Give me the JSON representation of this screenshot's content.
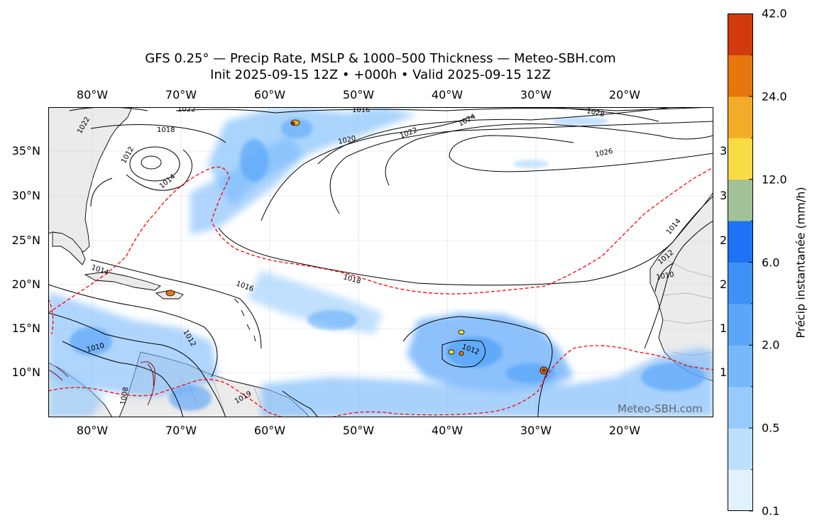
{
  "title_line1": "GFS 0.25° — Precip Rate, MSLP & 1000–500 Thickness — Meteo-SBH.com",
  "title_line2": "Init 2025-09-15 12Z • +000h • Valid 2025-09-15 12Z",
  "lon_ticks": [
    "80°W",
    "70°W",
    "60°W",
    "50°W",
    "40°W",
    "30°W",
    "20°W"
  ],
  "lat_ticks": [
    "35°N",
    "30°N",
    "25°N",
    "20°N",
    "15°N",
    "10°N"
  ],
  "right_cut_labels": [
    "3",
    "3",
    "2",
    "2",
    "1",
    "1"
  ],
  "isobars": {
    "l1022a": "1022",
    "l1022b": "1022",
    "l1018": "1018",
    "l1016top": "1016",
    "l1020": "1020",
    "l1022c": "1022",
    "l1024": "1024",
    "l1028": "1028",
    "l1026": "1026",
    "l1012a": "1012",
    "l1014a": "1014",
    "l1014b": "1014",
    "l1016b": "1016",
    "l1018b": "1018",
    "l1012b": "1012",
    "l1010a": "1010",
    "l1012c": "1012",
    "l1014c": "1014",
    "l1012d": "1012",
    "l1010b": "1010",
    "l1008": "1008",
    "l1019": "1019"
  },
  "watermark": "Meteo-SBH.com",
  "colorbar": {
    "label": "Précip instantanée (mm/h)",
    "tick_labels": [
      "0.1",
      "0.5",
      "2.0",
      "6.0",
      "12.0",
      "24.0",
      "42.0"
    ],
    "colors": [
      "#e1f1fe",
      "#bde0fe",
      "#97cbfd",
      "#76b8fc",
      "#5aa7f9",
      "#3e92f7",
      "#1e73f4",
      "#a1c196",
      "#f9dc43",
      "#f3ac28",
      "#e8760f",
      "#d13a0c"
    ]
  },
  "colors": {
    "land": "#ebebeb",
    "thickness_line": "#ff0000",
    "isobar": "#000000"
  }
}
